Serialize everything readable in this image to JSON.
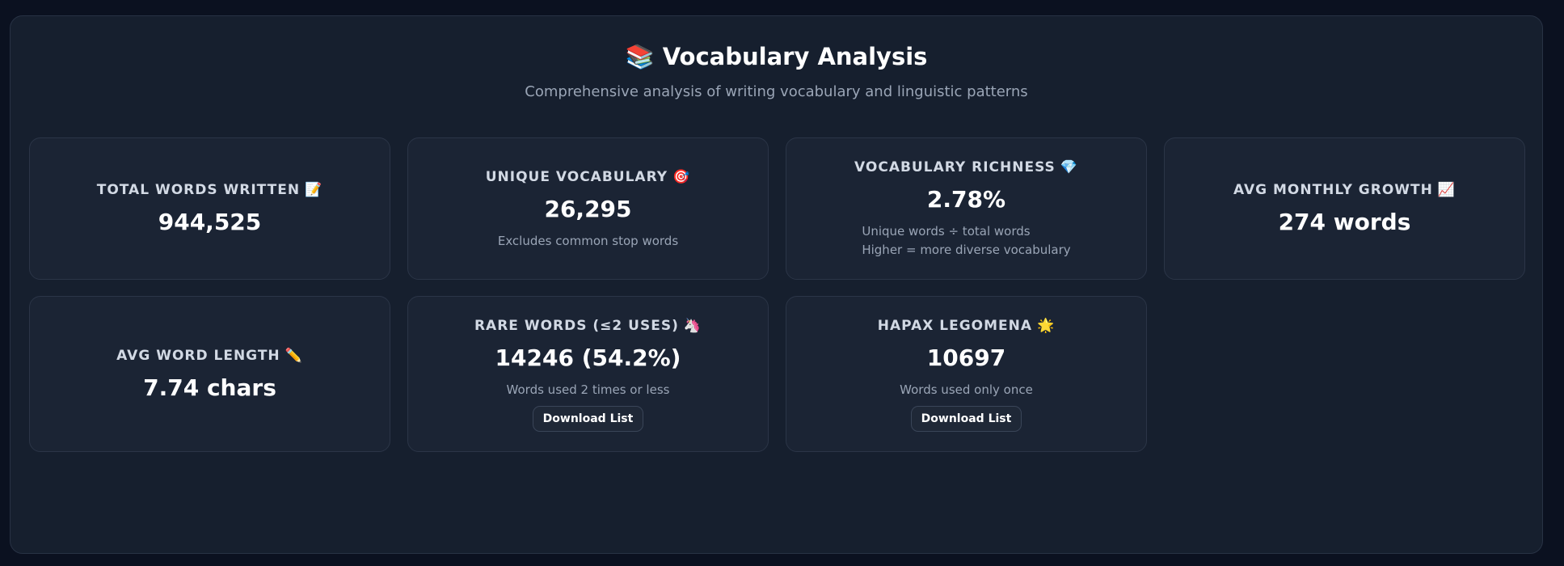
{
  "header": {
    "title_emoji": "📚",
    "title": "Vocabulary Analysis",
    "subtitle": "Comprehensive analysis of writing vocabulary and linguistic patterns"
  },
  "cards": {
    "total_words": {
      "label": "TOTAL WORDS WRITTEN",
      "emoji": "📝",
      "value": "944,525"
    },
    "unique_vocabulary": {
      "label": "UNIQUE VOCABULARY",
      "emoji": "🎯",
      "value": "26,295",
      "description": "Excludes common stop words"
    },
    "vocabulary_richness": {
      "label": "VOCABULARY RICHNESS",
      "emoji": "💎",
      "value": "2.78%",
      "description_line1": "Unique words ÷ total words",
      "description_line2": "Higher = more diverse vocabulary"
    },
    "avg_monthly_growth": {
      "label": "AVG MONTHLY GROWTH",
      "emoji": "📈",
      "value": "274 words"
    },
    "avg_word_length": {
      "label": "AVG WORD LENGTH",
      "emoji": "✏️",
      "value": "7.74 chars"
    },
    "rare_words": {
      "label": "RARE WORDS (≤2 USES)",
      "emoji": "🦄",
      "value": "14246 (54.2%)",
      "description": "Words used 2 times or less",
      "button_label": "Download List"
    },
    "hapax_legomena": {
      "label": "HAPAX LEGOMENA",
      "emoji": "🌟",
      "value": "10697",
      "description": "Words used only once",
      "button_label": "Download List"
    }
  }
}
